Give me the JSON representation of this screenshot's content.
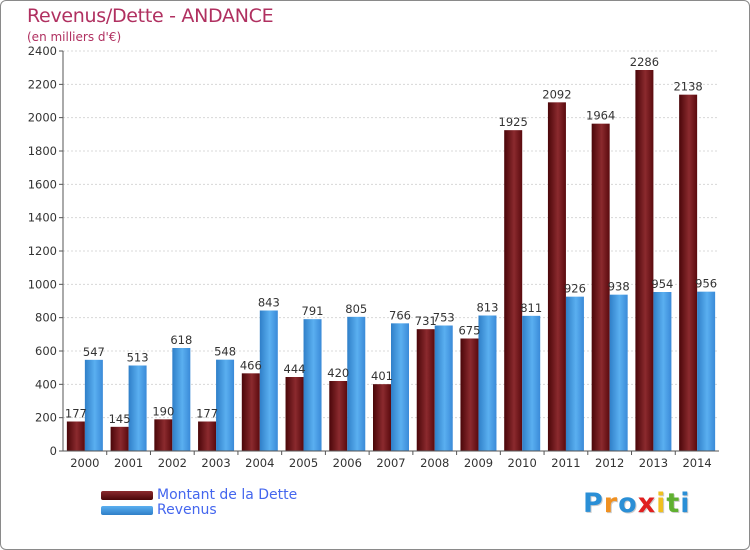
{
  "chart_data": {
    "type": "bar",
    "title": "Revenus/Dette - ANDANCE",
    "subtitle": "(en milliers d'€)",
    "categories": [
      "2000",
      "2001",
      "2002",
      "2003",
      "2004",
      "2005",
      "2006",
      "2007",
      "2008",
      "2009",
      "2010",
      "2011",
      "2012",
      "2013",
      "2014"
    ],
    "series": [
      {
        "name": "Montant de la Dette",
        "values": [
          177,
          145,
          190,
          177,
          466,
          444,
          420,
          401,
          731,
          675,
          1925,
          2092,
          1964,
          2286,
          2138
        ]
      },
      {
        "name": "Revenus",
        "values": [
          547,
          513,
          618,
          548,
          843,
          791,
          805,
          766,
          753,
          813,
          811,
          926,
          938,
          954,
          956
        ]
      }
    ],
    "ylim": [
      0,
      2400
    ],
    "yticks": [
      0,
      200,
      400,
      600,
      800,
      1000,
      1200,
      1400,
      1600,
      1800,
      2000,
      2200,
      2400
    ],
    "grid": true,
    "legend_position": "bottom-left"
  },
  "colors": {
    "dette": "#6e1418",
    "revenus": "#3f95dc",
    "title": "#b03060"
  },
  "logo": {
    "letters": [
      "P",
      "r",
      "o",
      "x",
      "i",
      "t",
      "i"
    ],
    "colors": [
      "#2a8fd6",
      "#f09020",
      "#2a8fd6",
      "#e02020",
      "#f0c020",
      "#60b030",
      "#2a8fd6"
    ]
  }
}
